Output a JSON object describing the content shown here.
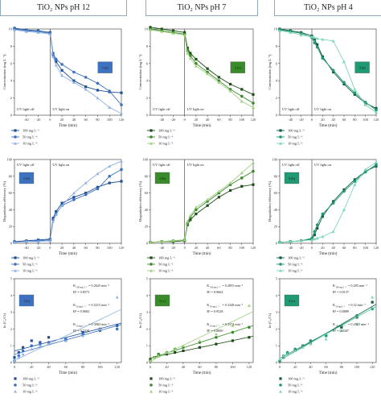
{
  "columns": [
    {
      "title": "TiO₂ NPs pH 12",
      "color": "#3d72c0",
      "dark": "#1f4f96",
      "light": "#8fb3e3",
      "panel_labels": [
        "1 (a)",
        "1 (b)",
        "1 (c)"
      ],
      "fit": [
        {
          "k": "K",
          "sub": "100 mg L⁻¹",
          "kval": "= 0.2625 min⁻¹",
          "r2": "R² = 0.8573"
        },
        {
          "k": "K",
          "sub": "50 mg L⁻¹",
          "kval": "= 0.5215 min⁻¹",
          "r2": "R² = 0.9682"
        },
        {
          "k": "K",
          "sub": "10 mg L⁻¹",
          "kval": "= 0.3082 min⁻¹",
          "r2": "R² = 0.7438"
        }
      ]
    },
    {
      "title": "TiO₂ NPs pH 7",
      "color": "#3a8c2a",
      "dark": "#1d4d16",
      "light": "#9fd07f",
      "panel_labels": [
        "2 (a)",
        "2 (b)",
        "2 (c)"
      ],
      "fit": [
        {
          "k": "K",
          "sub": "100 mg L⁻¹",
          "kval": "= 0.2855 min⁻¹",
          "r2": "R² = 0.9662"
        },
        {
          "k": "K",
          "sub": "50 mg L⁻¹",
          "kval": "= 0.3348 min⁻¹",
          "r2": "R² = 0.9528"
        },
        {
          "k": "K",
          "sub": "10 mg L⁻¹",
          "kval": "= 0.3374 min⁻¹",
          "r2": "R² = 0.8689"
        }
      ]
    },
    {
      "title": "TiO₂ NPs pH 4",
      "color": "#1f9a72",
      "dark": "#0f5b44",
      "light": "#7fd6b5",
      "panel_labels": [
        "3 (a)",
        "3 (b)",
        "3 (c)"
      ],
      "fit": [
        {
          "k": "K",
          "sub": "100 mg L⁻¹",
          "kval": "= 0.285 min⁻¹",
          "r2": "R² = 0.9137"
        },
        {
          "k": "K",
          "sub": "50 mg L⁻¹",
          "kval": "= 0.32 min⁻¹",
          "r2": "R² = 0.8889"
        },
        {
          "k": "K",
          "sub": "10 mg L⁻¹",
          "kval": "= 0.2525 min⁻¹",
          "r2": "R² = 0.9447"
        }
      ]
    }
  ],
  "legend_labels": [
    "100 mg L⁻¹",
    "50 mg L⁻¹",
    "10 mg L⁻¹"
  ],
  "uv_off": "UV light off",
  "uv_on": "UV light on",
  "chart_data": [
    {
      "type": "line",
      "row": "a",
      "ylabel": "Concentration (mg L⁻¹)",
      "xlabel": "Time (min)",
      "xlim": [
        -60,
        120
      ],
      "ylim": [
        0,
        10
      ],
      "xticks": [
        -40,
        -20,
        0,
        20,
        40,
        60,
        80,
        100,
        120
      ],
      "yticks": [
        0,
        2,
        4,
        6,
        8,
        10
      ],
      "x": [
        -60,
        -40,
        -20,
        0,
        5,
        10,
        20,
        40,
        60,
        80,
        100,
        120
      ],
      "series_by_column": [
        [
          {
            "name": "100 mg L⁻¹",
            "values": [
              10.1,
              9.9,
              9.8,
              9.6,
              7.0,
              6.2,
              5.2,
              4.0,
              3.3,
              2.9,
              2.7,
              2.6
            ]
          },
          {
            "name": "50 mg L⁻¹",
            "values": [
              10.0,
              9.8,
              9.7,
              9.5,
              7.2,
              6.5,
              5.9,
              5.0,
              4.4,
              3.7,
              2.8,
              1.2
            ]
          },
          {
            "name": "10 mg L⁻¹",
            "values": [
              9.9,
              9.7,
              9.6,
              9.4,
              6.8,
              5.8,
              4.6,
              3.8,
              3.0,
              2.0,
              0.9,
              0.2
            ]
          }
        ],
        [
          {
            "name": "100 mg L⁻¹",
            "values": [
              10.2,
              10.0,
              9.8,
              9.6,
              7.8,
              7.2,
              6.5,
              5.4,
              4.4,
              3.6,
              3.0,
              2.4
            ]
          },
          {
            "name": "50 mg L⁻¹",
            "values": [
              10.0,
              9.8,
              9.6,
              9.4,
              7.5,
              6.9,
              6.0,
              5.0,
              4.0,
              3.0,
              2.2,
              1.4
            ]
          },
          {
            "name": "10 mg L⁻¹",
            "values": [
              9.9,
              9.7,
              9.5,
              9.3,
              7.2,
              6.6,
              5.7,
              4.8,
              3.8,
              2.8,
              1.6,
              0.9
            ]
          }
        ],
        [
          {
            "name": "100 mg L⁻¹",
            "values": [
              10.0,
              9.8,
              9.6,
              9.2,
              8.8,
              8.2,
              6.8,
              5.0,
              3.6,
              2.4,
              1.4,
              0.8
            ]
          },
          {
            "name": "50 mg L⁻¹",
            "values": [
              9.9,
              9.7,
              9.5,
              9.0,
              8.4,
              7.9,
              6.6,
              5.2,
              3.8,
              2.6,
              1.5,
              0.6
            ]
          },
          {
            "name": "10 mg L⁻¹",
            "values": [
              9.8,
              9.6,
              9.3,
              9.1,
              9.0,
              8.9,
              8.8,
              8.6,
              6.2,
              3.0,
              1.2,
              0.3
            ]
          }
        ]
      ]
    },
    {
      "type": "line",
      "row": "b",
      "ylabel": "Degradation efficiency (%)",
      "xlabel": "Time (min)",
      "xlim": [
        -60,
        120
      ],
      "ylim": [
        0,
        100
      ],
      "xticks": [
        -40,
        -20,
        0,
        20,
        40,
        60,
        80,
        100,
        120
      ],
      "yticks": [
        0,
        20,
        40,
        60,
        80,
        100
      ],
      "x": [
        -60,
        -40,
        -20,
        0,
        5,
        10,
        20,
        40,
        60,
        80,
        100,
        120
      ],
      "series_by_column": [
        [
          {
            "name": "100 mg L⁻¹",
            "values": [
              2,
              3,
              4,
              5,
              30,
              38,
              48,
              55,
              60,
              67,
              72,
              74
            ]
          },
          {
            "name": "50 mg L⁻¹",
            "values": [
              1,
              2,
              3,
              4,
              28,
              35,
              45,
              52,
              58,
              65,
              80,
              88
            ]
          },
          {
            "name": "10 mg L⁻¹",
            "values": [
              1,
              2,
              2,
              3,
              26,
              34,
              45,
              60,
              72,
              83,
              92,
              98
            ]
          }
        ],
        [
          {
            "name": "100 mg L⁻¹",
            "values": [
              1,
              2,
              2,
              3,
              22,
              28,
              35,
              45,
              55,
              63,
              68,
              70
            ]
          },
          {
            "name": "50 mg L⁻¹",
            "values": [
              1,
              2,
              3,
              4,
              24,
              31,
              40,
              50,
              60,
              70,
              78,
              86
            ]
          },
          {
            "name": "10 mg L⁻¹",
            "values": [
              1,
              2,
              3,
              4,
              26,
              33,
              43,
              52,
              62,
              72,
              84,
              96
            ]
          }
        ],
        [
          {
            "name": "100 mg L⁻¹",
            "values": [
              1,
              2,
              3,
              5,
              10,
              18,
              32,
              50,
              64,
              76,
              86,
              92
            ]
          },
          {
            "name": "50 mg L⁻¹",
            "values": [
              1,
              2,
              3,
              6,
              14,
              22,
              35,
              48,
              62,
              74,
              85,
              94
            ]
          },
          {
            "name": "10 mg L⁻¹",
            "values": [
              1,
              2,
              3,
              4,
              5,
              6,
              8,
              14,
              40,
              70,
              88,
              97
            ]
          }
        ]
      ]
    },
    {
      "type": "scatter",
      "row": "c",
      "ylabel": "ln (C₀/Ct)",
      "xlabel": "Time (min)",
      "xlim": [
        0,
        125
      ],
      "ylim": [
        0,
        5
      ],
      "xticks": [
        0,
        20,
        40,
        60,
        80,
        100,
        120
      ],
      "yticks": [
        0,
        1,
        2,
        3,
        4,
        5
      ],
      "x": [
        0,
        5,
        10,
        20,
        30,
        40,
        60,
        80,
        100,
        120
      ],
      "series_by_column": [
        [
          {
            "name": "100 mg L⁻¹",
            "values": [
              0.3,
              0.6,
              0.9,
              1.3,
              1.2,
              1.5,
              1.3,
              1.8,
              2.0,
              2.2
            ]
          },
          {
            "name": "50 mg L⁻¹",
            "values": [
              0.1,
              0.4,
              0.7,
              1.0,
              1.1,
              1.2,
              1.4,
              1.7,
              1.9,
              2.0
            ]
          },
          {
            "name": "10 mg L⁻¹",
            "values": [
              0.1,
              0.3,
              0.5,
              0.8,
              1.0,
              1.1,
              1.3,
              1.6,
              2.0,
              3.9
            ]
          }
        ],
        [
          {
            "name": "100 mg L⁻¹",
            "values": [
              0.2,
              0.3,
              0.4,
              0.5,
              0.6,
              0.7,
              0.9,
              1.1,
              1.3,
              1.5
            ]
          },
          {
            "name": "50 mg L⁻¹",
            "values": [
              0.1,
              0.3,
              0.5,
              0.6,
              0.8,
              0.9,
              1.2,
              1.5,
              1.8,
              2.1
            ]
          },
          {
            "name": "10 mg L⁻¹",
            "values": [
              0.1,
              0.3,
              0.4,
              0.6,
              0.8,
              1.0,
              1.3,
              1.7,
              2.2,
              3.4
            ]
          }
        ],
        [
          {
            "name": "100 mg L⁻¹",
            "values": [
              0.1,
              0.3,
              0.5,
              0.7,
              1.0,
              1.2,
              1.6,
              2.1,
              2.7,
              3.6
            ]
          },
          {
            "name": "50 mg L⁻¹",
            "values": [
              0.1,
              0.4,
              0.6,
              0.8,
              1.0,
              1.3,
              1.6,
              2.2,
              2.8,
              3.2
            ]
          },
          {
            "name": "10 mg L⁻¹",
            "values": [
              0.2,
              0.4,
              0.5,
              0.7,
              0.9,
              1.1,
              1.4,
              1.9,
              2.3,
              3.9
            ]
          }
        ]
      ]
    }
  ]
}
